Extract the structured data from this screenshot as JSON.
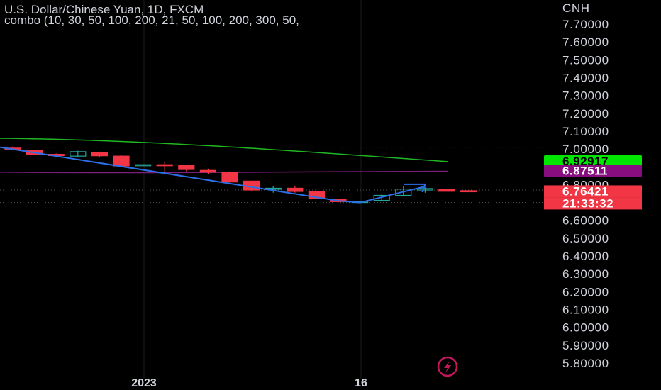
{
  "header": {
    "title": "U.S. Dollar/Chinese Yuan, 1D, FXCM",
    "indicator": "combo (10, 30, 50, 100, 200, 21, 50, 100, 200, 300, 50,"
  },
  "price_axis": {
    "currency": "CNH",
    "labels": [
      "7.70000",
      "7.60000",
      "7.50000",
      "7.40000",
      "7.30000",
      "7.20000",
      "7.10000",
      "7.00000",
      "6.90000",
      "6.80000",
      "6.70000",
      "6.60000",
      "6.50000",
      "6.40000",
      "6.30000",
      "6.20000",
      "6.10000",
      "6.00000",
      "5.90000",
      "5.80000"
    ]
  },
  "badges": [
    {
      "value": "6.92917",
      "bg": "#00e600",
      "fg": "#000000"
    },
    {
      "value": "6.87511",
      "bg": "#880e80",
      "fg": "#ffffff"
    },
    {
      "value": "6.76421",
      "bg": "#f23645",
      "fg": "#ffffff"
    },
    {
      "value": "21:33:32",
      "bg": "#f23645",
      "fg": "#ffffff"
    }
  ],
  "time_axis": {
    "labels": [
      "2023",
      "16"
    ]
  },
  "colors": {
    "up": "#26a69a",
    "down": "#f23645",
    "ma_green": "#1fb822",
    "ma_purple": "#7b1f7a",
    "trendline": "#2d6fe8",
    "background": "#000000"
  },
  "icons": {
    "flash": "lightning-icon"
  },
  "chart_data": {
    "type": "candlestick",
    "title": "U.S. Dollar/Chinese Yuan, 1D, FXCM",
    "ylabel": "CNH",
    "ylim": [
      5.75,
      7.8
    ],
    "x_tick_labels": [
      "2023",
      "16"
    ],
    "candles": [
      {
        "o": 7.005,
        "h": 7.015,
        "l": 6.995,
        "c": 7.0
      },
      {
        "o": 6.99,
        "h": 6.995,
        "l": 6.965,
        "c": 6.968
      },
      {
        "o": 6.97,
        "h": 6.975,
        "l": 6.955,
        "c": 6.963
      },
      {
        "o": 6.96,
        "h": 6.99,
        "l": 6.955,
        "c": 6.985
      },
      {
        "o": 6.982,
        "h": 6.985,
        "l": 6.955,
        "c": 6.962
      },
      {
        "o": 6.96,
        "h": 6.965,
        "l": 6.9,
        "c": 6.905
      },
      {
        "o": 6.91,
        "h": 6.915,
        "l": 6.905,
        "c": 6.912
      },
      {
        "o": 6.912,
        "h": 6.93,
        "l": 6.87,
        "c": 6.91
      },
      {
        "o": 6.91,
        "h": 6.912,
        "l": 6.875,
        "c": 6.885
      },
      {
        "o": 6.88,
        "h": 6.89,
        "l": 6.86,
        "c": 6.87
      },
      {
        "o": 6.87,
        "h": 6.875,
        "l": 6.81,
        "c": 6.815
      },
      {
        "o": 6.82,
        "h": 6.822,
        "l": 6.765,
        "c": 6.77
      },
      {
        "o": 6.775,
        "h": 6.79,
        "l": 6.755,
        "c": 6.78
      },
      {
        "o": 6.78,
        "h": 6.79,
        "l": 6.755,
        "c": 6.762
      },
      {
        "o": 6.76,
        "h": 6.765,
        "l": 6.718,
        "c": 6.722
      },
      {
        "o": 6.718,
        "h": 6.72,
        "l": 6.7,
        "c": 6.705
      },
      {
        "o": 6.705,
        "h": 6.71,
        "l": 6.7,
        "c": 6.706
      },
      {
        "o": 6.712,
        "h": 6.745,
        "l": 6.705,
        "c": 6.74
      },
      {
        "o": 6.74,
        "h": 6.79,
        "l": 6.735,
        "c": 6.775
      },
      {
        "o": 6.77,
        "h": 6.785,
        "l": 6.755,
        "c": 6.778
      },
      {
        "o": 6.772,
        "h": 6.775,
        "l": 6.762,
        "c": 6.768
      },
      {
        "o": 6.766,
        "h": 6.768,
        "l": 6.762,
        "c": 6.764
      }
    ],
    "moving_averages": [
      {
        "color": "#1fb822",
        "start": 7.06,
        "end": 6.929
      },
      {
        "color": "#7b1f7a",
        "start": 6.87,
        "end": 6.875
      }
    ],
    "trendline_points": [
      [
        0,
        7.01
      ],
      [
        15,
        6.71
      ],
      [
        16,
        6.7
      ],
      [
        19,
        6.79
      ]
    ],
    "horizontal_levels": [
      7.01,
      6.77,
      6.7
    ],
    "last_price": 6.76421
  }
}
